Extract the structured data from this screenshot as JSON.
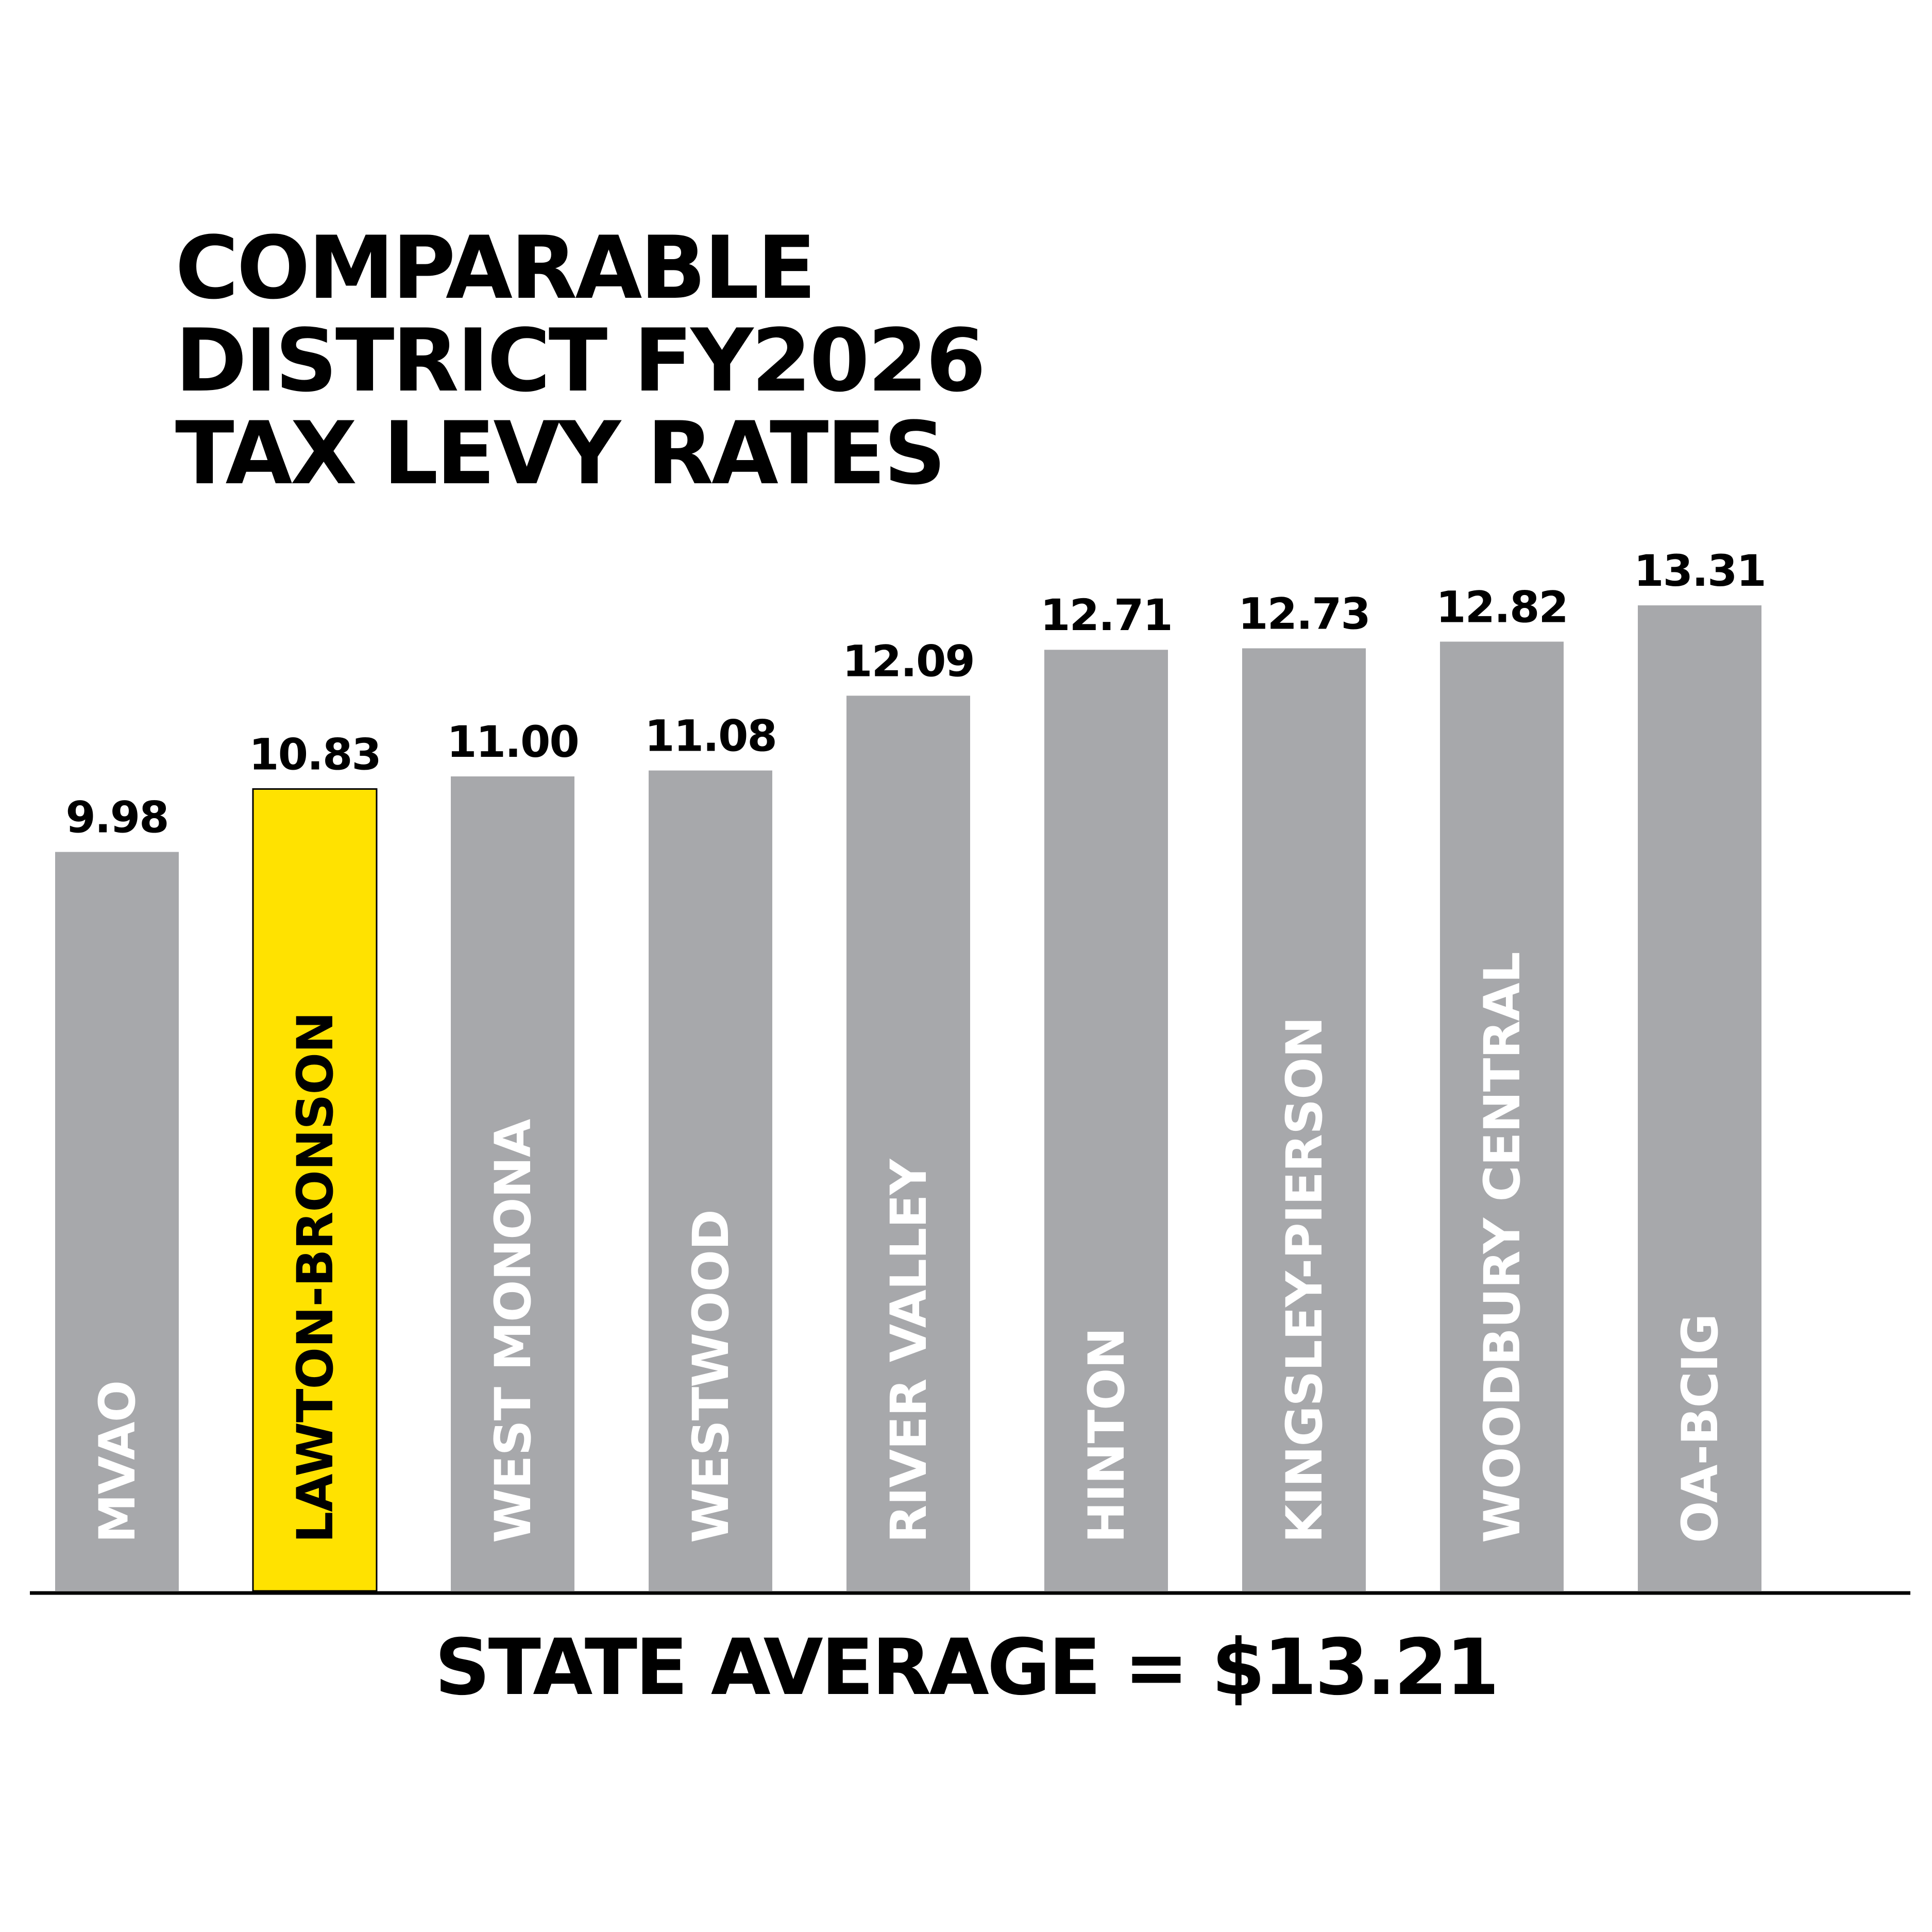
{
  "title_lines": [
    "COMPARABLE",
    "DISTRICT FY2026",
    "TAX LEVY RATES"
  ],
  "footer": "STATE AVERAGE = $13.21",
  "colors": {
    "bar": "#a7a8ab",
    "highlight": "#ffe200",
    "bar_label_on_gray": "#ffffff",
    "bar_label_on_highlight": "#000000",
    "value_label": "#000000",
    "baseline": "#000000"
  },
  "chart_data": {
    "type": "bar",
    "orientation": "vertical",
    "categories": [
      "MVAO",
      "LAWTON-BRONSON",
      "WEST MONONA",
      "WESTWOOD",
      "RIVER VALLEY",
      "HINTON",
      "KINGSLEY-PIERSON",
      "WOODBURY CENTRAL",
      "OA-BCIG"
    ],
    "values": [
      9.98,
      10.83,
      11.0,
      11.08,
      12.09,
      12.71,
      12.73,
      12.82,
      13.31
    ],
    "value_labels": [
      "9.98",
      "10.83",
      "11.00",
      "11.08",
      "12.09",
      "12.71",
      "12.73",
      "12.82",
      "13.31"
    ],
    "highlight_category": "LAWTON-BRONSON",
    "ylim": [
      0,
      13.31
    ],
    "grid": false,
    "legend": "none",
    "category_labels": "vertical inside bars"
  }
}
